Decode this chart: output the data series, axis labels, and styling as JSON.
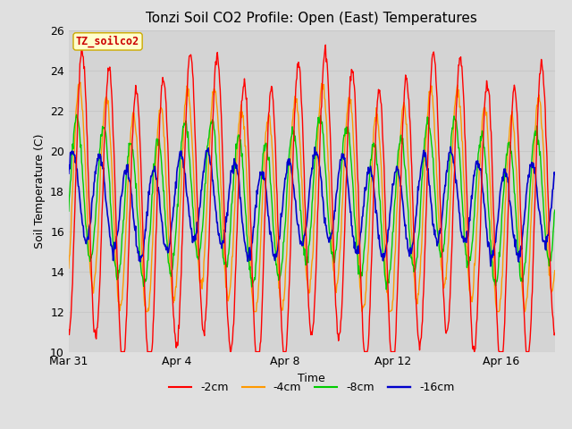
{
  "title": "Tonzi Soil CO2 Profile: Open (East) Temperatures",
  "xlabel": "Time",
  "ylabel": "Soil Temperature (C)",
  "ylim": [
    10,
    26
  ],
  "xlim_days": [
    0,
    18
  ],
  "bg_color": "#e0e0e0",
  "plot_bg": "#d4d4d4",
  "annotation_text": "TZ_soilco2",
  "annotation_bg": "#ffffcc",
  "annotation_border": "#ccaa00",
  "annotation_text_color": "#cc0000",
  "line_colors": {
    "-2cm": "#ff0000",
    "-4cm": "#ff9900",
    "-8cm": "#00cc00",
    "-16cm": "#0000cc"
  },
  "legend_labels": [
    "-2cm",
    "-4cm",
    "-8cm",
    "-16cm"
  ],
  "xtick_labels": [
    "Mar 31",
    "Apr 4",
    "Apr 8",
    "Apr 12",
    "Apr 16"
  ],
  "xtick_positions": [
    0,
    4,
    8,
    12,
    16
  ],
  "ytick_positions": [
    10,
    12,
    14,
    16,
    18,
    20,
    22,
    24,
    26
  ],
  "grid_color": "#c8c8c8",
  "title_fontsize": 11,
  "axis_fontsize": 9,
  "tick_fontsize": 9,
  "legend_fontsize": 9
}
